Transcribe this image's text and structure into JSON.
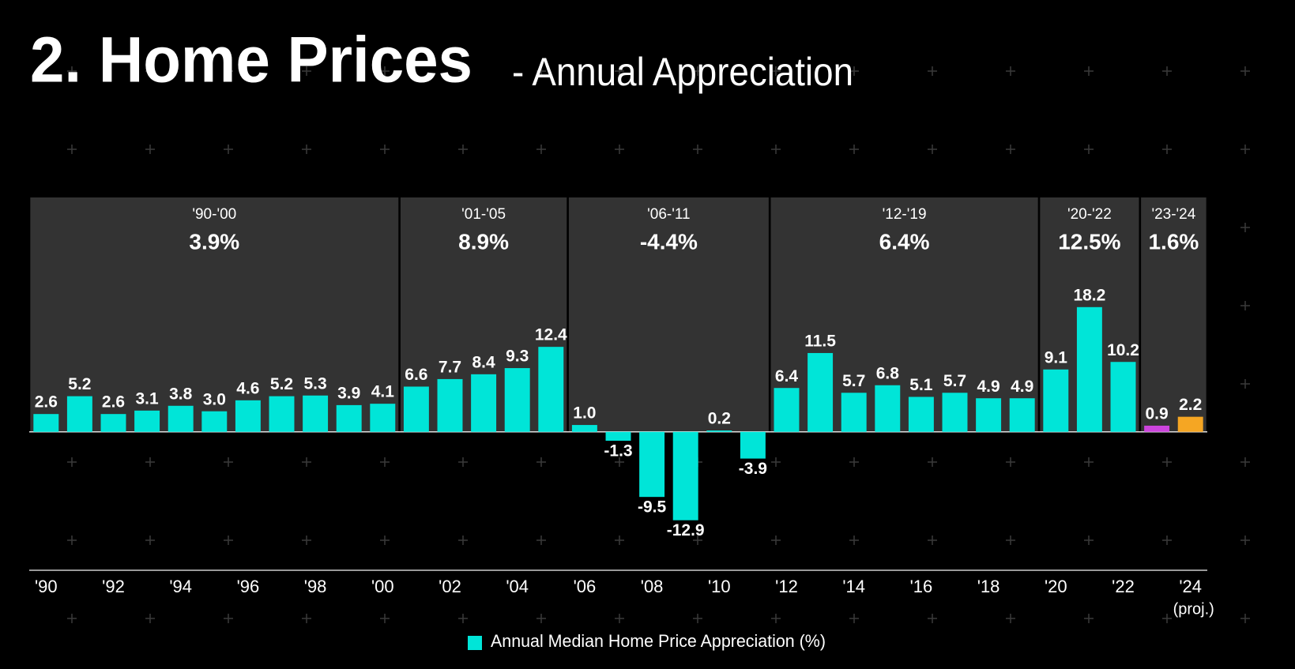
{
  "chart_data": {
    "type": "bar",
    "title": "2. Home Prices",
    "subtitle": "- Annual Appreciation",
    "annotation": "(proj.)",
    "x": [
      1990,
      1991,
      1992,
      1993,
      1994,
      1995,
      1996,
      1997,
      1998,
      1999,
      2000,
      2001,
      2002,
      2003,
      2004,
      2005,
      2006,
      2007,
      2008,
      2009,
      2010,
      2011,
      2012,
      2013,
      2014,
      2015,
      2016,
      2017,
      2018,
      2019,
      2020,
      2021,
      2022,
      2023,
      2024
    ],
    "xlim": [
      1989.5,
      2024.5
    ],
    "xticks": [
      {
        "value": 1990,
        "label": "'90"
      },
      {
        "value": 1992,
        "label": "'92"
      },
      {
        "value": 1994,
        "label": "'94"
      },
      {
        "value": 1996,
        "label": "'96"
      },
      {
        "value": 1998,
        "label": "'98"
      },
      {
        "value": 2000,
        "label": "'00"
      },
      {
        "value": 2002,
        "label": "'02"
      },
      {
        "value": 2004,
        "label": "'04"
      },
      {
        "value": 2006,
        "label": "'06"
      },
      {
        "value": 2008,
        "label": "'08"
      },
      {
        "value": 2010,
        "label": "'10"
      },
      {
        "value": 2012,
        "label": "'12"
      },
      {
        "value": 2014,
        "label": "'14"
      },
      {
        "value": 2016,
        "label": "'16"
      },
      {
        "value": 2018,
        "label": "'18"
      },
      {
        "value": 2020,
        "label": "'20"
      },
      {
        "value": 2022,
        "label": "'22"
      },
      {
        "value": 2024,
        "label": "'24"
      }
    ],
    "ylim": [
      -20.2,
      34.2
    ],
    "series": [
      {
        "name": "Annual Median Home Price Appreciation (%)",
        "color": "#00e5d8",
        "values": [
          2.6,
          5.2,
          2.6,
          3.1,
          3.8,
          3.0,
          4.6,
          5.2,
          5.3,
          3.9,
          4.1,
          6.6,
          7.7,
          8.4,
          9.3,
          12.4,
          1.0,
          -1.3,
          -9.5,
          -12.9,
          0.2,
          -3.9,
          6.4,
          11.5,
          5.7,
          6.8,
          5.1,
          5.7,
          4.9,
          4.9,
          9.1,
          18.2,
          10.2,
          0.9,
          2.2
        ],
        "value_labels": [
          "2.6",
          "5.2",
          "2.6",
          "3.1",
          "3.8",
          "3.0",
          "4.6",
          "5.2",
          "5.3",
          "3.9",
          "4.1",
          "6.6",
          "7.7",
          "8.4",
          "9.3",
          "12.4",
          "1.0",
          "-1.3",
          "-9.5",
          "-12.9",
          "0.2",
          "-3.9",
          "6.4",
          "11.5",
          "5.7",
          "6.8",
          "5.1",
          "5.7",
          "4.9",
          "4.9",
          "9.1",
          "18.2",
          "10.2",
          "0.9",
          "2.2"
        ],
        "colors": [
          "#00e5d8",
          "#00e5d8",
          "#00e5d8",
          "#00e5d8",
          "#00e5d8",
          "#00e5d8",
          "#00e5d8",
          "#00e5d8",
          "#00e5d8",
          "#00e5d8",
          "#00e5d8",
          "#00e5d8",
          "#00e5d8",
          "#00e5d8",
          "#00e5d8",
          "#00e5d8",
          "#00e5d8",
          "#00e5d8",
          "#00e5d8",
          "#00e5d8",
          "#00e5d8",
          "#00e5d8",
          "#00e5d8",
          "#00e5d8",
          "#00e5d8",
          "#00e5d8",
          "#00e5d8",
          "#00e5d8",
          "#00e5d8",
          "#00e5d8",
          "#00e5d8",
          "#00e5d8",
          "#00e5d8",
          "#cc44dd",
          "#f5a623"
        ]
      }
    ],
    "periods": [
      {
        "label": "'90-'00",
        "start": 1990,
        "end": 2000,
        "value": 3.9,
        "value_label": "3.9%"
      },
      {
        "label": "'01-'05",
        "start": 2001,
        "end": 2005,
        "value": 8.9,
        "value_label": "8.9%"
      },
      {
        "label": "'06-'11",
        "start": 2006,
        "end": 2011,
        "value": -4.4,
        "value_label": "-4.4%"
      },
      {
        "label": "'12-'19",
        "start": 2012,
        "end": 2019,
        "value": 6.4,
        "value_label": "6.4%"
      },
      {
        "label": "'20-'22",
        "start": 2020,
        "end": 2022,
        "value": 12.5,
        "value_label": "12.5%"
      },
      {
        "label": "'23-'24",
        "start": 2023,
        "end": 2024,
        "value": 1.6,
        "value_label": "1.6%"
      }
    ]
  }
}
